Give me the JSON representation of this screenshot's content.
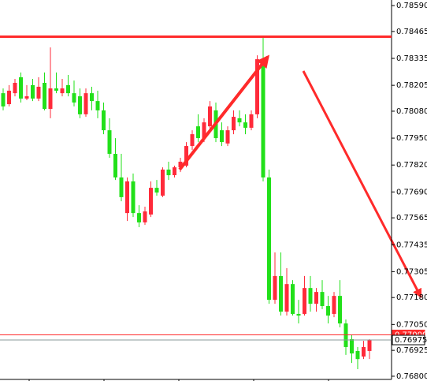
{
  "chart_data": {
    "type": "candlestick",
    "open": [
      0.78167,
      0.78114,
      0.78167,
      0.78244,
      0.78141,
      0.78206,
      0.78141,
      0.78217,
      0.78091,
      0.7819,
      0.78167,
      0.78206,
      0.78167,
      0.78152,
      0.78065,
      0.78167,
      0.78129,
      0.78084,
      0.77988,
      0.77874,
      0.7776,
      0.77588,
      0.77741,
      0.77588,
      0.77543,
      0.77581,
      0.7771,
      0.77672,
      0.77798,
      0.77771,
      0.77809,
      0.77817,
      0.77912,
      0.78007,
      0.7795,
      0.78007,
      0.78084,
      0.77988,
      0.77924,
      0.77988,
      0.78046,
      0.78026,
      0.78,
      0.78065,
      0.78331,
      0.7776,
      0.77169,
      0.77284,
      0.77112,
      0.77245,
      0.77101,
      0.77101,
      0.77226,
      0.7715,
      0.77207,
      0.77139,
      0.77101,
      0.77188,
      0.77055,
      0.76979,
      0.76922,
      0.76895,
      0.76922
    ],
    "high": [
      0.7819,
      0.78206,
      0.78236,
      0.78267,
      0.78206,
      0.78236,
      0.78244,
      0.78267,
      0.78388,
      0.78267,
      0.78236,
      0.78255,
      0.78228,
      0.7819,
      0.7819,
      0.78198,
      0.78179,
      0.78122,
      0.78046,
      0.7795,
      0.77874,
      0.7776,
      0.77779,
      0.77626,
      0.77619,
      0.77741,
      0.77748,
      0.77809,
      0.77836,
      0.77817,
      0.77855,
      0.77931,
      0.77988,
      0.78065,
      0.78046,
      0.78129,
      0.78122,
      0.78026,
      0.78007,
      0.78084,
      0.78084,
      0.78065,
      0.78084,
      0.7835,
      0.78434,
      0.77798,
      0.77398,
      0.77398,
      0.77322,
      0.77264,
      0.77169,
      0.77284,
      0.77284,
      0.77226,
      0.77264,
      0.77188,
      0.77207,
      0.77264,
      0.77074,
      0.76998,
      0.76941,
      0.76971,
      0.76979
    ],
    "low": [
      0.78084,
      0.78103,
      0.78152,
      0.78122,
      0.78133,
      0.78129,
      0.78129,
      0.78084,
      0.78046,
      0.78167,
      0.78152,
      0.78152,
      0.78103,
      0.78046,
      0.78053,
      0.78084,
      0.78046,
      0.77969,
      0.77855,
      0.77748,
      0.77645,
      0.7755,
      0.77569,
      0.7752,
      0.77531,
      0.77569,
      0.77672,
      0.77665,
      0.77748,
      0.7776,
      0.77786,
      0.77809,
      0.77893,
      0.77931,
      0.77931,
      0.77988,
      0.77931,
      0.77912,
      0.77912,
      0.77969,
      0.78007,
      0.77969,
      0.77988,
      0.78046,
      0.77741,
      0.7715,
      0.7715,
      0.77093,
      0.77093,
      0.77093,
      0.77055,
      0.77093,
      0.77112,
      0.77112,
      0.77124,
      0.77055,
      0.77085,
      0.77036,
      0.76903,
      0.76864,
      0.76834,
      0.76883,
      0.76883
    ],
    "close": [
      0.78103,
      0.78179,
      0.78217,
      0.78141,
      0.78152,
      0.78141,
      0.78198,
      0.78091,
      0.7819,
      0.78179,
      0.7819,
      0.78167,
      0.78122,
      0.78065,
      0.78167,
      0.78129,
      0.78084,
      0.77988,
      0.77874,
      0.7776,
      0.77665,
      0.77741,
      0.77588,
      0.77543,
      0.77596,
      0.7771,
      0.77687,
      0.77798,
      0.77771,
      0.77809,
      0.77836,
      0.77912,
      0.77969,
      0.7795,
      0.78026,
      0.78103,
      0.7795,
      0.77931,
      0.77988,
      0.78053,
      0.78026,
      0.78,
      0.78065,
      0.78331,
      0.7776,
      0.77169,
      0.77284,
      0.77112,
      0.77245,
      0.77101,
      0.77093,
      0.77226,
      0.7715,
      0.77207,
      0.77139,
      0.77093,
      0.77188,
      0.77055,
      0.76941,
      0.7691,
      0.76883,
      0.76941,
      0.76975
    ],
    "up_color": "#ff2a3a",
    "down_color": "#22e01a",
    "ylim": [
      0.76777,
      0.78617
    ],
    "yticks": [
      {
        "value": 0.7859,
        "label": "0.78590"
      },
      {
        "value": 0.78465,
        "label": "0.78465"
      },
      {
        "value": 0.78335,
        "label": "0.78335"
      },
      {
        "value": 0.78205,
        "label": "0.78205"
      },
      {
        "value": 0.7808,
        "label": "0.78080"
      },
      {
        "value": 0.7795,
        "label": "0.77950"
      },
      {
        "value": 0.7782,
        "label": "0.77820"
      },
      {
        "value": 0.7769,
        "label": "0.77690"
      },
      {
        "value": 0.77565,
        "label": "0.77565"
      },
      {
        "value": 0.77435,
        "label": "0.77435"
      },
      {
        "value": 0.77305,
        "label": "0.77305"
      },
      {
        "value": 0.7718,
        "label": "0.77180"
      },
      {
        "value": 0.7705,
        "label": "0.77050"
      },
      {
        "value": 0.76925,
        "label": "0.76925"
      },
      {
        "value": 0.768,
        "label": "0.76800"
      }
    ],
    "hlines": [
      {
        "value": 0.7844,
        "color": "#ff2a2a"
      },
      {
        "value": 0.77,
        "label": "0.77000",
        "color": "#ff2a2a"
      },
      {
        "value": 0.76975,
        "label": "0.76975",
        "color": "#8a9a9a"
      }
    ]
  }
}
